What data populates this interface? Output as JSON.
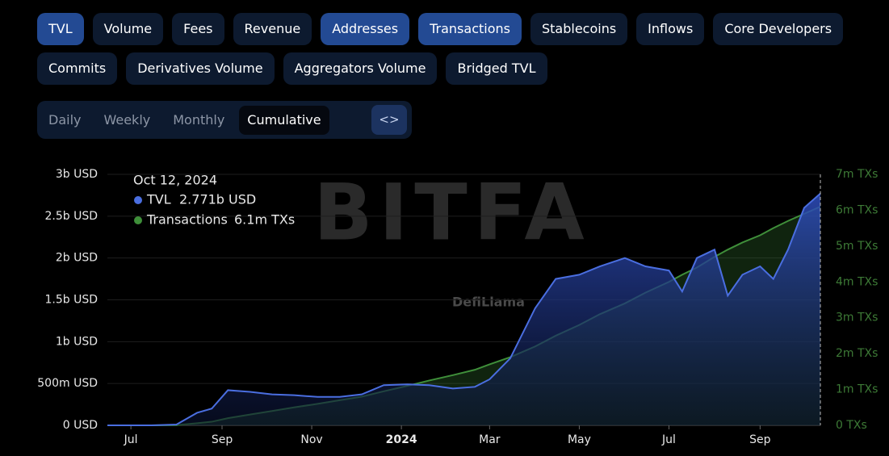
{
  "buttons": [
    {
      "label": "TVL",
      "active": true
    },
    {
      "label": "Volume",
      "active": false
    },
    {
      "label": "Fees",
      "active": false
    },
    {
      "label": "Revenue",
      "active": false
    },
    {
      "label": "Addresses",
      "active": true
    },
    {
      "label": "Transactions",
      "active": true
    },
    {
      "label": "Stablecoins",
      "active": false
    },
    {
      "label": "Inflows",
      "active": false
    },
    {
      "label": "Core Developers",
      "active": false
    },
    {
      "label": "Commits",
      "active": false
    },
    {
      "label": "Derivatives Volume",
      "active": false
    },
    {
      "label": "Aggregators Volume",
      "active": false
    },
    {
      "label": "Bridged TVL",
      "active": false
    }
  ],
  "periods": [
    {
      "label": "Daily",
      "active": false
    },
    {
      "label": "Weekly",
      "active": false
    },
    {
      "label": "Monthly",
      "active": false
    },
    {
      "label": "Cumulative",
      "active": true
    }
  ],
  "watermarks": [
    "BITFA",
    "DefiLlama"
  ],
  "tooltip": {
    "date": "Oct 12, 2024",
    "values": [
      "2.771b USD",
      "6.1m TXs"
    ]
  },
  "chart_data": {
    "type": "area",
    "x": [
      "2023-06-15",
      "2023-07-15",
      "2023-08-01",
      "2023-08-15",
      "2023-08-25",
      "2023-09-05",
      "2023-09-20",
      "2023-10-05",
      "2023-10-20",
      "2023-11-05",
      "2023-11-20",
      "2023-12-05",
      "2023-12-20",
      "2024-01-05",
      "2024-01-20",
      "2024-02-05",
      "2024-02-20",
      "2024-03-01",
      "2024-03-15",
      "2024-04-01",
      "2024-04-15",
      "2024-05-01",
      "2024-05-15",
      "2024-06-01",
      "2024-06-15",
      "2024-07-01",
      "2024-07-10",
      "2024-07-20",
      "2024-08-01",
      "2024-08-10",
      "2024-08-20",
      "2024-09-01",
      "2024-09-10",
      "2024-09-20",
      "2024-10-01",
      "2024-10-12"
    ],
    "xlim": [
      "2023-06-15",
      "2024-10-12"
    ],
    "xticks": [
      {
        "value": "2023-07-01",
        "label": "Jul"
      },
      {
        "value": "2023-09-01",
        "label": "Sep"
      },
      {
        "value": "2023-11-01",
        "label": "Nov"
      },
      {
        "value": "2024-01-01",
        "label": "2024"
      },
      {
        "value": "2024-03-01",
        "label": "Mar"
      },
      {
        "value": "2024-05-01",
        "label": "May"
      },
      {
        "value": "2024-07-01",
        "label": "Jul"
      },
      {
        "value": "2024-09-01",
        "label": "Sep"
      }
    ],
    "ylim": [
      0,
      3000000000
    ],
    "yticks": [
      {
        "value": 0,
        "label": "0 USD"
      },
      {
        "value": 500000000,
        "label": "500m USD"
      },
      {
        "value": 1000000000,
        "label": "1b USD"
      },
      {
        "value": 1500000000,
        "label": "1.5b USD"
      },
      {
        "value": 2000000000,
        "label": "2b USD"
      },
      {
        "value": 2500000000,
        "label": "2.5b USD"
      },
      {
        "value": 3000000000,
        "label": "3b USD"
      }
    ],
    "y2lim": [
      0,
      7000000
    ],
    "y2ticks": [
      {
        "value": 0,
        "label": "0 TXs"
      },
      {
        "value": 1000000,
        "label": "1m TXs"
      },
      {
        "value": 2000000,
        "label": "2m TXs"
      },
      {
        "value": 3000000,
        "label": "3m TXs"
      },
      {
        "value": 4000000,
        "label": "4m TXs"
      },
      {
        "value": 5000000,
        "label": "5m TXs"
      },
      {
        "value": 6000000,
        "label": "6m TXs"
      },
      {
        "value": 7000000,
        "label": "7m TXs"
      }
    ],
    "grid": true,
    "series": [
      {
        "name": "Transactions",
        "color": "#3f8f3a",
        "axis": "y2",
        "values": [
          0,
          0,
          5000,
          60000,
          100000,
          200000,
          300000,
          400000,
          500000,
          600000,
          700000,
          800000,
          950000,
          1100000,
          1250000,
          1400000,
          1550000,
          1700000,
          1900000,
          2200000,
          2500000,
          2800000,
          3100000,
          3400000,
          3700000,
          4000000,
          4200000,
          4400000,
          4700000,
          4900000,
          5100000,
          5300000,
          5500000,
          5700000,
          5900000,
          6100000
        ]
      },
      {
        "name": "TVL",
        "color": "#4a6ee0",
        "values": [
          0,
          0,
          10000000,
          150000000,
          200000000,
          420000000,
          400000000,
          370000000,
          360000000,
          340000000,
          340000000,
          370000000,
          480000000,
          490000000,
          480000000,
          440000000,
          460000000,
          550000000,
          800000000,
          1400000000,
          1750000000,
          1800000000,
          1900000000,
          2000000000,
          1900000000,
          1850000000,
          1600000000,
          2000000000,
          2100000000,
          1550000000,
          1800000000,
          1900000000,
          1750000000,
          2100000000,
          2600000000,
          2771000000
        ]
      }
    ]
  }
}
